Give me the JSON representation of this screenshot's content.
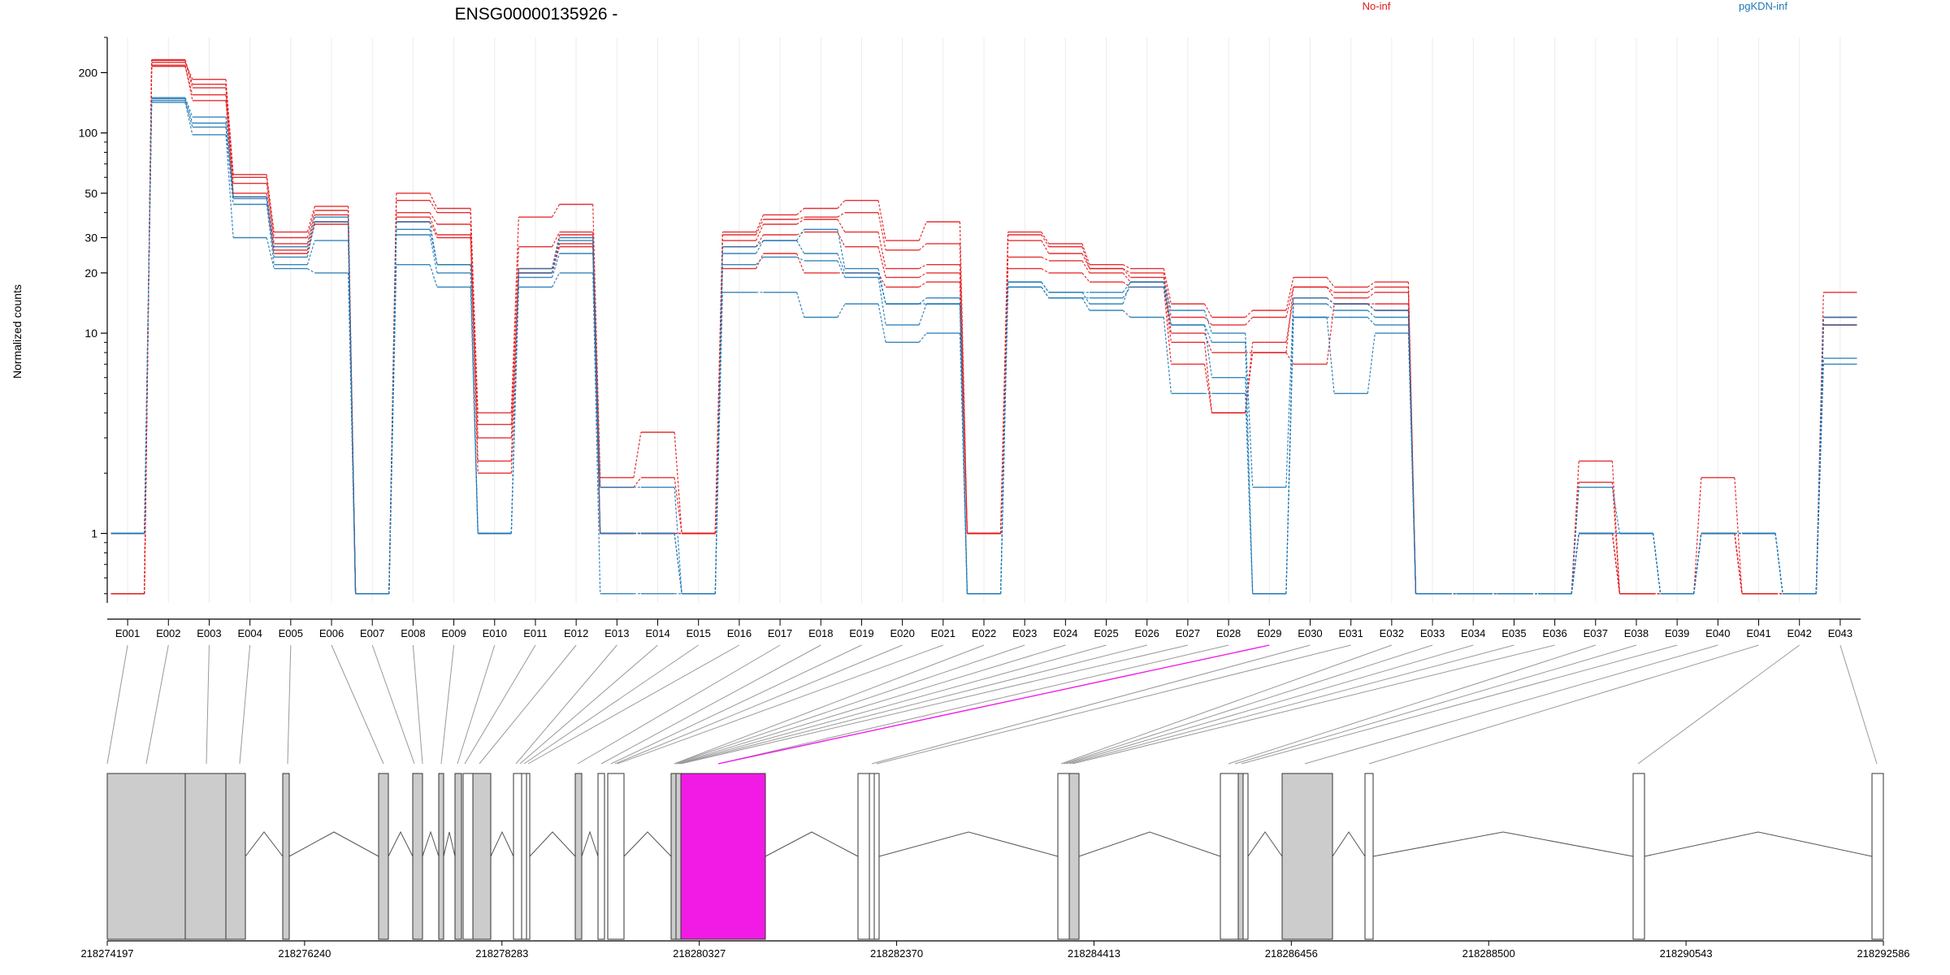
{
  "title": "ENSG00000135926 -",
  "legend": [
    {
      "label": "No-inf",
      "color": "#E31A1C"
    },
    {
      "label": "pgKDN-inf",
      "color": "#1F78B4"
    }
  ],
  "chart_data": {
    "type": "line",
    "title": "ENSG00000135926 -",
    "ylabel": "Normalized counts",
    "xlabel": "",
    "yscale": "log",
    "ylim": [
      0.45,
      300
    ],
    "yticks": [
      1,
      10,
      20,
      30,
      50,
      100,
      200
    ],
    "grid": true,
    "legend_placement": "top",
    "categories": [
      "E001",
      "E002",
      "E003",
      "E004",
      "E005",
      "E006",
      "E007",
      "E008",
      "E009",
      "E010",
      "E011",
      "E012",
      "E013",
      "E014",
      "E015",
      "E016",
      "E017",
      "E018",
      "E019",
      "E020",
      "E021",
      "E022",
      "E023",
      "E024",
      "E025",
      "E026",
      "E027",
      "E028",
      "E029",
      "E030",
      "E031",
      "E032",
      "E033",
      "E034",
      "E035",
      "E036",
      "E037",
      "E038",
      "E039",
      "E040",
      "E041",
      "E042",
      "E043"
    ],
    "series": [
      {
        "group": "No-inf",
        "color": "#E31A1C",
        "values": [
          0.5,
          225,
          185,
          62,
          32,
          43,
          0.5,
          50,
          42,
          4,
          38,
          44,
          1.9,
          3.2,
          1,
          32,
          39,
          42,
          46,
          29,
          36,
          1,
          32,
          28,
          22,
          21,
          14,
          12,
          13,
          19,
          17,
          18,
          0.5,
          0.5,
          0.5,
          0.5,
          2.3,
          0.5,
          0.5,
          1.9,
          0.5,
          0.5,
          16
        ]
      },
      {
        "group": "No-inf",
        "color": "#E31A1C",
        "values": [
          0.5,
          232,
          175,
          60,
          30,
          41,
          0.5,
          46,
          40,
          3.5,
          27,
          32,
          1.7,
          1.9,
          1,
          31,
          37,
          38,
          40,
          26,
          28,
          1,
          31,
          27,
          21,
          20,
          12,
          11,
          12,
          17,
          16,
          17,
          0.5,
          0.5,
          0.5,
          0.5,
          1.8,
          0.5,
          0.5,
          1,
          0.5,
          0.5,
          12
        ]
      },
      {
        "group": "No-inf",
        "color": "#E31A1C",
        "values": [
          0.5,
          230,
          168,
          56,
          28,
          39,
          0.5,
          40,
          35,
          3,
          21,
          31,
          1,
          1,
          1,
          29,
          35,
          37,
          32,
          21,
          22,
          1,
          29,
          25,
          21,
          19,
          10,
          8,
          8,
          17,
          15,
          16,
          0.5,
          0.5,
          0.5,
          0.5,
          1,
          0.5,
          0.5,
          1,
          0.5,
          0.5,
          11
        ]
      },
      {
        "group": "No-inf",
        "color": "#E31A1C",
        "values": [
          0.5,
          215,
          155,
          50,
          26,
          36,
          0.5,
          38,
          31,
          2.3,
          20,
          28,
          1,
          1,
          1,
          27,
          31,
          32,
          27,
          19,
          20,
          1,
          24,
          23,
          20,
          18,
          9,
          4,
          9,
          15,
          14,
          14,
          0.5,
          0.5,
          0.5,
          0.5,
          1,
          0.5,
          0.5,
          1,
          0.5,
          0.5,
          11
        ]
      },
      {
        "group": "No-inf",
        "color": "#E31A1C",
        "values": [
          0.5,
          218,
          145,
          48,
          25,
          35,
          0.5,
          36,
          30,
          2,
          20,
          27,
          1,
          1,
          1,
          21,
          25,
          20,
          20,
          17,
          18,
          1,
          21,
          20,
          18,
          17,
          7,
          4,
          8,
          7,
          14,
          13,
          0.5,
          0.5,
          0.5,
          0.5,
          1,
          0.5,
          0.5,
          1,
          0.5,
          0.5,
          11
        ]
      },
      {
        "group": "pgKDN-inf",
        "color": "#1F78B4",
        "values": [
          1,
          150,
          120,
          48,
          27,
          38,
          0.5,
          36,
          22,
          1,
          21,
          30,
          1.7,
          1.7,
          0.5,
          27,
          29,
          33,
          21,
          14,
          15,
          0.5,
          18,
          16,
          14,
          18,
          13,
          10,
          1.7,
          15,
          14,
          13,
          0.5,
          0.5,
          0.5,
          0.5,
          1.7,
          1,
          0.5,
          1,
          1,
          0.5,
          12
        ]
      },
      {
        "group": "pgKDN-inf",
        "color": "#1F78B4",
        "values": [
          1,
          148,
          112,
          47,
          24,
          36,
          0.5,
          33,
          22,
          1,
          20,
          29,
          1,
          1,
          0.5,
          25,
          29,
          25,
          20,
          14,
          14,
          0.5,
          18,
          16,
          16,
          18,
          11,
          9,
          0.5,
          14,
          13,
          12,
          0.5,
          0.5,
          0.5,
          0.5,
          1,
          1,
          0.5,
          1,
          1,
          0.5,
          11
        ]
      },
      {
        "group": "pgKDN-inf",
        "color": "#1F78B4",
        "values": [
          1,
          145,
          107,
          44,
          22,
          29,
          0.5,
          31,
          20,
          1,
          19,
          25,
          1,
          1,
          0.5,
          22,
          24,
          23,
          19,
          11,
          14,
          0.5,
          17,
          15,
          15,
          17,
          11,
          6,
          0.5,
          12,
          12,
          11,
          0.5,
          0.5,
          0.5,
          0.5,
          1,
          1,
          0.5,
          1,
          1,
          0.5,
          7.5
        ]
      },
      {
        "group": "pgKDN-inf",
        "color": "#1F78B4",
        "values": [
          1,
          142,
          98,
          30,
          21,
          20,
          0.5,
          22,
          17,
          1,
          17,
          20,
          0.5,
          0.5,
          0.5,
          16,
          16,
          12,
          14,
          9,
          10,
          0.5,
          17,
          15,
          13,
          12,
          5,
          5,
          0.5,
          12,
          5,
          10,
          0.5,
          0.5,
          0.5,
          0.5,
          1,
          1,
          0.5,
          1,
          1,
          0.5,
          7
        ]
      }
    ],
    "gene_model": {
      "coordinates": [
        "218274197",
        "218276240",
        "218278283",
        "218280327",
        "218282370",
        "218284413",
        "218286456",
        "218288500",
        "218290543",
        "218292586"
      ],
      "highlighted_exon": "E029",
      "highlight_color": "#F21BE5"
    }
  }
}
